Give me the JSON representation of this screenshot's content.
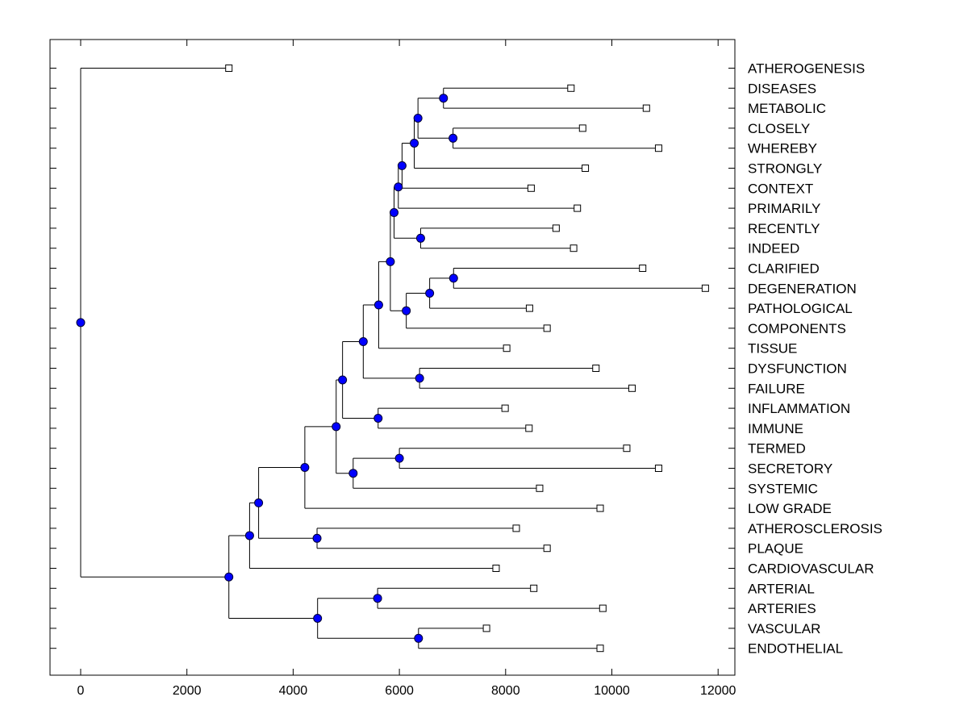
{
  "chart_data": {
    "type": "dendrogram",
    "title": "",
    "xlabel": "",
    "ylabel": "",
    "xlim": [
      -600,
      12100
    ],
    "x_ticks": [
      0,
      2000,
      4000,
      6000,
      8000,
      10000,
      12000
    ],
    "x_tick_labels": [
      "0",
      "2000",
      "4000",
      "6000",
      "8000",
      "10000",
      "12000"
    ],
    "grid": false,
    "leaves": [
      {
        "label": "ATHEROGENESIS",
        "value": 2790
      },
      {
        "label": "DISEASES",
        "value": 9230
      },
      {
        "label": "METABOLIC",
        "value": 10650
      },
      {
        "label": "CLOSELY",
        "value": 9450
      },
      {
        "label": "WHEREBY",
        "value": 10880
      },
      {
        "label": "STRONGLY",
        "value": 9500
      },
      {
        "label": "CONTEXT",
        "value": 8480
      },
      {
        "label": "PRIMARILY",
        "value": 9350
      },
      {
        "label": "RECENTLY",
        "value": 8950
      },
      {
        "label": "INDEED",
        "value": 9280
      },
      {
        "label": "CLARIFIED",
        "value": 10580
      },
      {
        "label": "DEGENERATION",
        "value": 11760
      },
      {
        "label": "PATHOLOGICAL",
        "value": 8450
      },
      {
        "label": "COMPONENTS",
        "value": 8780
      },
      {
        "label": "TISSUE",
        "value": 8020
      },
      {
        "label": "DYSFUNCTION",
        "value": 9700
      },
      {
        "label": "FAILURE",
        "value": 10380
      },
      {
        "label": "INFLAMMATION",
        "value": 7990
      },
      {
        "label": "IMMUNE",
        "value": 8440
      },
      {
        "label": "TERMED",
        "value": 10280
      },
      {
        "label": "SECRETORY",
        "value": 10880
      },
      {
        "label": "SYSTEMIC",
        "value": 8640
      },
      {
        "label": "LOW GRADE",
        "value": 9780
      },
      {
        "label": "ATHEROSCLEROSIS",
        "value": 8200
      },
      {
        "label": "PLAQUE",
        "value": 8780
      },
      {
        "label": "CARDIOVASCULAR",
        "value": 7820
      },
      {
        "label": "ARTERIAL",
        "value": 8530
      },
      {
        "label": "ARTERIES",
        "value": 9830
      },
      {
        "label": "VASCULAR",
        "value": 7640
      },
      {
        "label": "ENDOTHELIAL",
        "value": 9780
      }
    ],
    "nodes": [
      {
        "id": "n_dis_met",
        "value": 6830,
        "children": [
          "DISEASES",
          "METABOLIC"
        ]
      },
      {
        "id": "n_clo_whe",
        "value": 7010,
        "children": [
          "CLOSELY",
          "WHEREBY"
        ]
      },
      {
        "id": "n_a",
        "value": 6350,
        "children": [
          "n_dis_met",
          "n_clo_whe"
        ]
      },
      {
        "id": "n_b",
        "value": 6280,
        "children": [
          "n_a",
          "STRONGLY"
        ]
      },
      {
        "id": "n_c",
        "value": 6050,
        "children": [
          "n_b",
          "CONTEXT"
        ]
      },
      {
        "id": "n_d",
        "value": 5980,
        "children": [
          "n_c",
          "PRIMARILY"
        ]
      },
      {
        "id": "n_rec_ind",
        "value": 6400,
        "children": [
          "RECENTLY",
          "INDEED"
        ]
      },
      {
        "id": "n_e",
        "value": 5900,
        "children": [
          "n_d",
          "n_rec_ind"
        ]
      },
      {
        "id": "n_cla_deg",
        "value": 7020,
        "children": [
          "CLARIFIED",
          "DEGENERATION"
        ]
      },
      {
        "id": "n_f",
        "value": 6570,
        "children": [
          "n_cla_deg",
          "PATHOLOGICAL"
        ]
      },
      {
        "id": "n_g",
        "value": 6130,
        "children": [
          "n_f",
          "COMPONENTS"
        ]
      },
      {
        "id": "n_h",
        "value": 5830,
        "children": [
          "n_e",
          "n_g"
        ]
      },
      {
        "id": "n_i",
        "value": 5610,
        "children": [
          "n_h",
          "TISSUE"
        ]
      },
      {
        "id": "n_dys_fai",
        "value": 6380,
        "children": [
          "DYSFUNCTION",
          "FAILURE"
        ]
      },
      {
        "id": "n_j",
        "value": 5320,
        "children": [
          "n_i",
          "n_dys_fai"
        ]
      },
      {
        "id": "n_inf_imm",
        "value": 5600,
        "children": [
          "INFLAMMATION",
          "IMMUNE"
        ]
      },
      {
        "id": "n_k",
        "value": 4930,
        "children": [
          "n_j",
          "n_inf_imm"
        ]
      },
      {
        "id": "n_ter_sec",
        "value": 6000,
        "children": [
          "TERMED",
          "SECRETORY"
        ]
      },
      {
        "id": "n_l",
        "value": 5130,
        "children": [
          "n_ter_sec",
          "SYSTEMIC"
        ]
      },
      {
        "id": "n_m",
        "value": 4810,
        "children": [
          "n_k",
          "n_l"
        ]
      },
      {
        "id": "n_n",
        "value": 4220,
        "children": [
          "n_m",
          "LOW GRADE"
        ]
      },
      {
        "id": "n_ath_pla",
        "value": 4450,
        "children": [
          "ATHEROSCLEROSIS",
          "PLAQUE"
        ]
      },
      {
        "id": "n_o",
        "value": 3350,
        "children": [
          "n_n",
          "n_ath_pla"
        ]
      },
      {
        "id": "n_p",
        "value": 3180,
        "children": [
          "n_o",
          "CARDIOVASCULAR"
        ]
      },
      {
        "id": "n_art_arts",
        "value": 5590,
        "children": [
          "ARTERIAL",
          "ARTERIES"
        ]
      },
      {
        "id": "n_vas_end",
        "value": 6360,
        "children": [
          "VASCULAR",
          "ENDOTHELIAL"
        ]
      },
      {
        "id": "n_q",
        "value": 4460,
        "children": [
          "n_art_arts",
          "n_vas_end"
        ]
      },
      {
        "id": "n_r",
        "value": 2790,
        "children": [
          "n_p",
          "n_q"
        ]
      },
      {
        "id": "n_root",
        "value": 0,
        "children": [
          "ATHEROGENESIS",
          "n_r"
        ]
      }
    ],
    "colors": {
      "node_fill": "#0000ff",
      "line": "#000000",
      "leaf_marker_fill": "#ffffff"
    }
  }
}
